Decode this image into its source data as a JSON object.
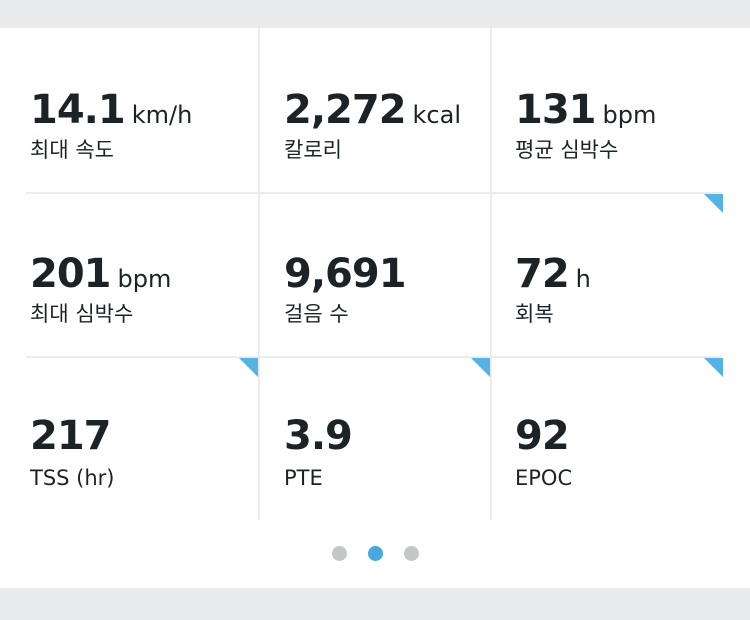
{
  "stats": [
    {
      "value": "14.1",
      "unit": "km/h",
      "label": "최대 속도",
      "flagged": false
    },
    {
      "value": "2,272",
      "unit": "kcal",
      "label": "칼로리",
      "flagged": false
    },
    {
      "value": "131",
      "unit": "bpm",
      "label": "평균 심박수",
      "flagged": false
    },
    {
      "value": "201",
      "unit": "bpm",
      "label": "최대 심박수",
      "flagged": false
    },
    {
      "value": "9,691",
      "unit": "",
      "label": "걸음 수",
      "flagged": false
    },
    {
      "value": "72",
      "unit": "h",
      "label": "회복",
      "flagged": true
    },
    {
      "value": "217",
      "unit": "",
      "label": "TSS (hr)",
      "flagged": true
    },
    {
      "value": "3.9",
      "unit": "",
      "label": "PTE",
      "flagged": true
    },
    {
      "value": "92",
      "unit": "",
      "label": "EPOC",
      "flagged": true
    }
  ],
  "pagination": {
    "total": 3,
    "active_index": 1
  },
  "colors": {
    "accent": "#55b3e3",
    "active_dot": "#4aa8de",
    "inactive_dot": "#c4c6c8",
    "divider": "#ececec",
    "background": "#e9eaec"
  }
}
